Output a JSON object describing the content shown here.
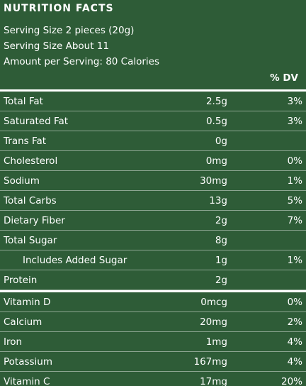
{
  "header": {
    "title": "NUTRITION FACTS"
  },
  "serving": [
    "Serving Size 2 pieces (20g)",
    "Serving Size About 11",
    "Amount per Serving: 80 Calories"
  ],
  "dv_header": "% DV",
  "sections": [
    {
      "rows": [
        {
          "label": "Total Fat",
          "amount": "2.5g",
          "dv": "3%"
        },
        {
          "label": "Saturated Fat",
          "amount": "0.5g",
          "dv": "3%"
        },
        {
          "label": "Trans Fat",
          "amount": "0g"
        },
        {
          "label": "Cholesterol",
          "amount": "0mg",
          "dv": "0%"
        },
        {
          "label": "Sodium",
          "amount": "30mg",
          "dv": "1%"
        },
        {
          "label": "Total Carbs",
          "amount": "13g",
          "dv": "5%"
        },
        {
          "label": "Dietary Fiber",
          "amount": "2g",
          "dv": "7%"
        },
        {
          "label": "Total Sugar",
          "amount": "8g"
        },
        {
          "label": "Includes Added Sugar",
          "amount": "1g",
          "dv": "1%",
          "indent": true
        },
        {
          "label": "Protein",
          "amount": "2g"
        }
      ]
    },
    {
      "rows": [
        {
          "label": "Vitamin D",
          "amount": "0mcg",
          "dv": "0%"
        },
        {
          "label": "Calcium",
          "amount": "20mg",
          "dv": "2%"
        },
        {
          "label": "Iron",
          "amount": "1mg",
          "dv": "4%"
        },
        {
          "label": "Potassium",
          "amount": "167mg",
          "dv": "4%"
        },
        {
          "label": "Vitamin C",
          "amount": "17mg",
          "dv": "20%"
        }
      ]
    }
  ]
}
